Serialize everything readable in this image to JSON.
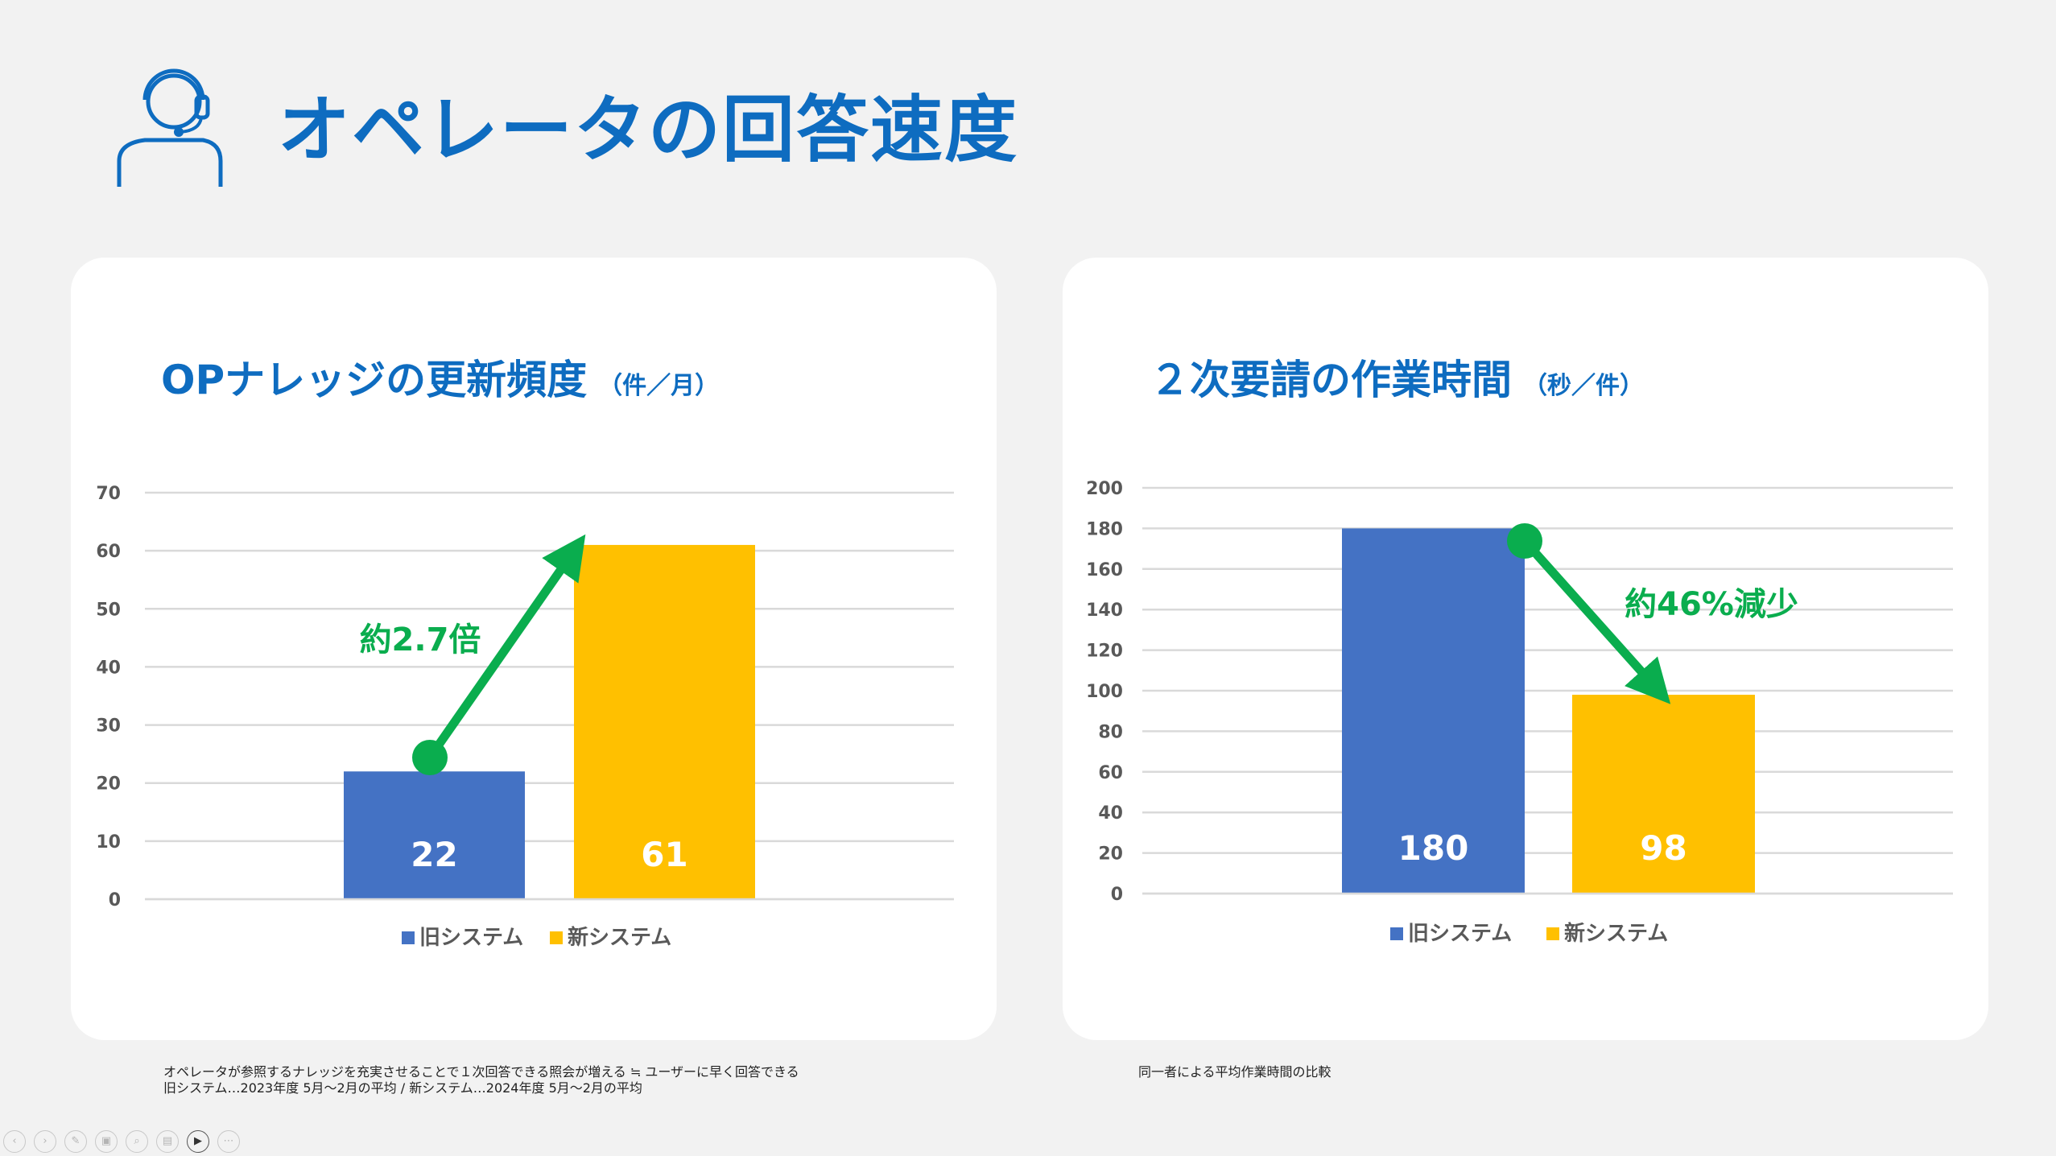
{
  "page": {
    "title": "オペレータの回答速度"
  },
  "colors": {
    "title": "#0e6cc0",
    "old_bar": "#4472c4",
    "new_bar": "#ffc000",
    "arrow": "#0aad4e",
    "grid": "#d9d9d9"
  },
  "left_card": {
    "title": "OPナレッジの更新頻度",
    "unit": "（件／月）",
    "annotation": "約2.7倍"
  },
  "right_card": {
    "title": "２次要請の作業時間",
    "unit": "（秒／件）",
    "annotation": "約46%減少"
  },
  "chart_data": [
    {
      "type": "bar",
      "title": "OPナレッジの更新頻度",
      "categories": [
        "旧システム",
        "新システム"
      ],
      "values": [
        22,
        61
      ],
      "ylim": [
        0,
        70
      ],
      "yticks": [
        "0",
        "10",
        "20",
        "30",
        "40",
        "50",
        "60",
        "70"
      ],
      "legend": [
        "旧システム",
        "新システム"
      ],
      "legend_position": "bottom",
      "grid": true,
      "data_labels": [
        "22",
        "61"
      ],
      "annotation": "約2.7倍"
    },
    {
      "type": "bar",
      "title": "２次要請の作業時間",
      "categories": [
        "旧システム",
        "新システム"
      ],
      "values": [
        180,
        98
      ],
      "ylim": [
        0,
        200
      ],
      "yticks": [
        "0",
        "20",
        "40",
        "60",
        "80",
        "100",
        "120",
        "140",
        "160",
        "180",
        "200"
      ],
      "legend": [
        "旧システム",
        "新システム"
      ],
      "legend_position": "bottom",
      "grid": true,
      "data_labels": [
        "180",
        "98"
      ],
      "annotation": "約46%減少"
    }
  ],
  "footnotes": {
    "left_line1": "オペレータが参照するナレッジを充実させることで１次回答できる照会が増える ≒ ユーザーに早く回答できる",
    "left_line2": "旧システム…2023年度 5月～2月の平均 / 新システム…2024年度 5月～2月の平均",
    "right_line1": "同一者による平均作業時間の比較"
  },
  "toolbar": {
    "buttons": [
      {
        "name": "prev-icon",
        "glyph": "‹"
      },
      {
        "name": "next-icon",
        "glyph": "›"
      },
      {
        "name": "pen-icon",
        "glyph": "✎"
      },
      {
        "name": "slides-icon",
        "glyph": "▣"
      },
      {
        "name": "zoom-icon",
        "glyph": "⌕"
      },
      {
        "name": "subtitle-icon",
        "glyph": "▤"
      },
      {
        "name": "camera-icon",
        "glyph": "▶"
      },
      {
        "name": "more-icon",
        "glyph": "⋯"
      }
    ]
  }
}
